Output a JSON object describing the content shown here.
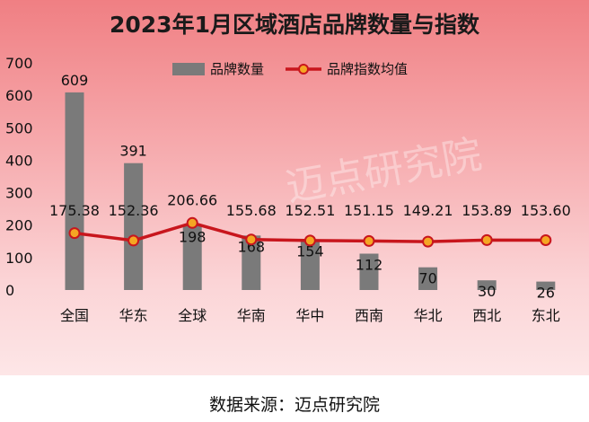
{
  "title": "2023年1月区域酒店品牌数量与指数",
  "source": "数据来源：迈点研究院",
  "watermark": "迈点研究院",
  "colors": {
    "bar": "#7a7a7a",
    "line": "#c8161d",
    "marker_fill": "#f5a623",
    "marker_stroke": "#c8161d"
  },
  "chart_data": {
    "type": "bar",
    "title": "2023年1月区域酒店品牌数量与指数",
    "categories": [
      "全国",
      "华东",
      "全球",
      "华南",
      "华中",
      "西南",
      "华北",
      "西北",
      "东北"
    ],
    "ylim": [
      0,
      700
    ],
    "yticks": [
      "0",
      "100",
      "200",
      "300",
      "400",
      "500",
      "600",
      "700"
    ],
    "grid": false,
    "legend_position": "top",
    "series": [
      {
        "name": "品牌数量",
        "type": "bar",
        "values": [
          609,
          391,
          198,
          168,
          154,
          112,
          70,
          30,
          26
        ],
        "labels": [
          "609",
          "391",
          "198",
          "168",
          "154",
          "112",
          "70",
          "30",
          "26"
        ]
      },
      {
        "name": "品牌指数均值",
        "type": "line",
        "values": [
          175.38,
          152.36,
          206.66,
          155.68,
          152.51,
          151.15,
          149.21,
          153.89,
          153.6
        ],
        "labels": [
          "175.38",
          "152.36",
          "206.66",
          "155.68",
          "152.51",
          "151.15",
          "149.21",
          "153.89",
          "153.60"
        ]
      }
    ]
  }
}
